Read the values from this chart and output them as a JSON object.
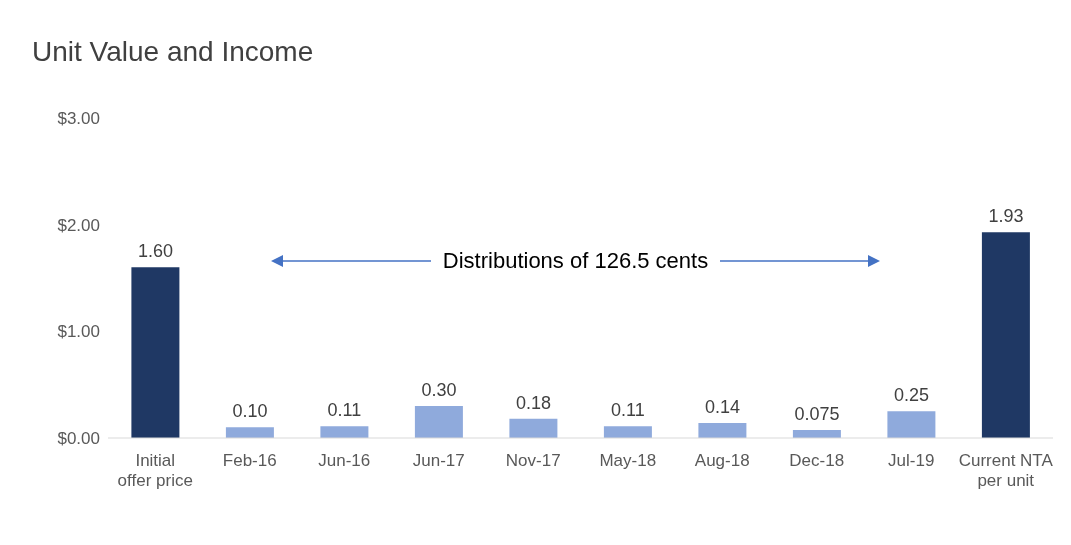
{
  "chart_data": {
    "type": "bar",
    "title": "Unit Value and Income",
    "categories": [
      "Initial offer price",
      "Feb-16",
      "Jun-16",
      "Jun-17",
      "Nov-17",
      "May-18",
      "Aug-18",
      "Dec-18",
      "Jul-19",
      "Current NTA per unit"
    ],
    "values": [
      1.6,
      0.1,
      0.11,
      0.3,
      0.18,
      0.11,
      0.14,
      0.075,
      0.25,
      1.93
    ],
    "colors": [
      "#1f3864",
      "#8faadc",
      "#8faadc",
      "#8faadc",
      "#8faadc",
      "#8faadc",
      "#8faadc",
      "#8faadc",
      "#8faadc",
      "#1f3864"
    ],
    "value_labels": [
      "1.60",
      "0.10",
      "0.11",
      "0.30",
      "0.18",
      "0.11",
      "0.14",
      "0.075",
      "0.25",
      "1.93"
    ],
    "ylim": [
      0,
      3
    ],
    "yticks": [
      {
        "value": 0,
        "label": "$0.00"
      },
      {
        "value": 1,
        "label": "$1.00"
      },
      {
        "value": 2,
        "label": "$2.00"
      },
      {
        "value": 3,
        "label": "$3.00"
      }
    ],
    "grid": false,
    "legend": false,
    "annotations": [
      "Distributions of 126.5 cents"
    ]
  }
}
